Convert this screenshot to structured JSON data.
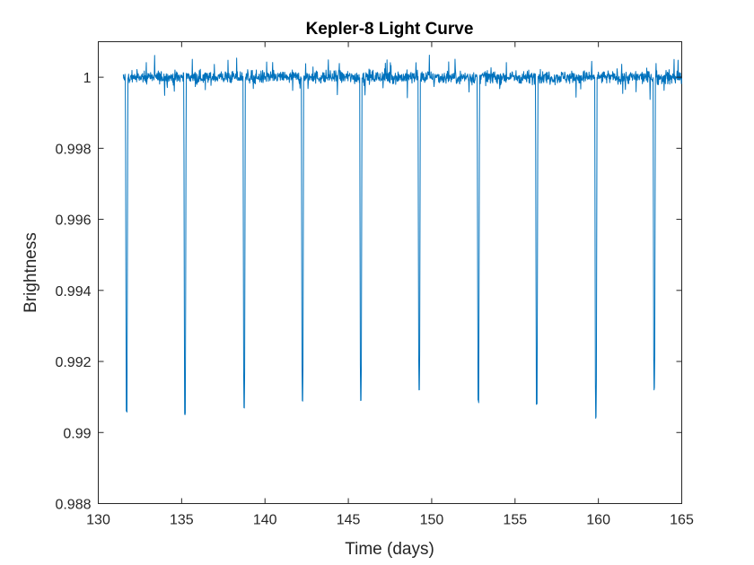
{
  "chart_data": {
    "type": "line",
    "title": "Kepler-8 Light Curve",
    "xlabel": "Time (days)",
    "ylabel": "Brightness",
    "xlim": [
      130,
      165
    ],
    "ylim": [
      0.988,
      1.001
    ],
    "xticks": [
      130,
      135,
      140,
      145,
      150,
      155,
      160,
      165
    ],
    "yticks": [
      0.988,
      0.99,
      0.992,
      0.994,
      0.996,
      0.998,
      1
    ],
    "xtick_labels": [
      "130",
      "135",
      "140",
      "145",
      "150",
      "155",
      "160",
      "165"
    ],
    "ytick_labels": [
      "0.988",
      "0.99",
      "0.992",
      "0.994",
      "0.996",
      "0.998",
      "1"
    ],
    "grid": false,
    "legend": "none",
    "series_color": "#0072BD",
    "data_range": [
      131.5,
      165
    ],
    "baseline": 1.0,
    "noise_amplitude": 0.0004,
    "transits": [
      {
        "time": 131.7,
        "min": 0.9906
      },
      {
        "time": 135.2,
        "min": 0.9905
      },
      {
        "time": 138.75,
        "min": 0.9907
      },
      {
        "time": 142.25,
        "min": 0.9909
      },
      {
        "time": 145.75,
        "min": 0.9909
      },
      {
        "time": 149.25,
        "min": 0.9912
      },
      {
        "time": 152.8,
        "min": 0.9909
      },
      {
        "time": 156.3,
        "min": 0.9908
      },
      {
        "time": 159.85,
        "min": 0.9904
      },
      {
        "time": 163.35,
        "min": 0.9912
      }
    ]
  }
}
